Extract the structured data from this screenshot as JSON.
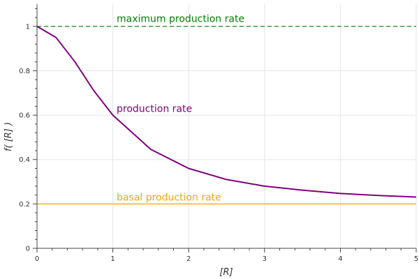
{
  "chart_data": {
    "type": "line",
    "xlabel": "[R]",
    "ylabel": "f( [R] )",
    "xlim": [
      0,
      5
    ],
    "ylim": [
      0,
      1.1
    ],
    "grid": true,
    "x_ticks": [
      0,
      1,
      2,
      3,
      4,
      5
    ],
    "y_ticks": [
      0,
      0.2,
      0.4,
      0.6,
      0.8,
      1
    ],
    "x_tick_labels": [
      "0",
      "1",
      "2",
      "3",
      "4",
      "5"
    ],
    "y_tick_labels": [
      "0",
      "0.2",
      "0.4",
      "0.6",
      "0.8",
      "1"
    ],
    "series": [
      {
        "name": "production rate",
        "color": "#800080",
        "x": [
          0,
          0.25,
          0.5,
          0.75,
          1,
          1.5,
          2,
          2.5,
          3,
          3.5,
          4,
          4.5,
          5
        ],
        "y": [
          1,
          0.95,
          0.84,
          0.71,
          0.6,
          0.446,
          0.36,
          0.31,
          0.28,
          0.262,
          0.247,
          0.238,
          0.231
        ]
      }
    ],
    "reference_lines": [
      {
        "name": "maximum production rate",
        "y": 1.0,
        "color": "#008000",
        "style": "dashed"
      },
      {
        "name": "basal production rate",
        "y": 0.2,
        "color": "#FFA500",
        "style": "solid"
      }
    ],
    "annotations": [
      {
        "text": "maximum production rate",
        "x": 1.05,
        "y": 1.02,
        "color": "#008000"
      },
      {
        "text": "production rate",
        "x": 1.05,
        "y": 0.615,
        "color": "#800080"
      },
      {
        "text": "basal production rate",
        "x": 1.05,
        "y": 0.215,
        "color": "#FFA500"
      }
    ]
  }
}
